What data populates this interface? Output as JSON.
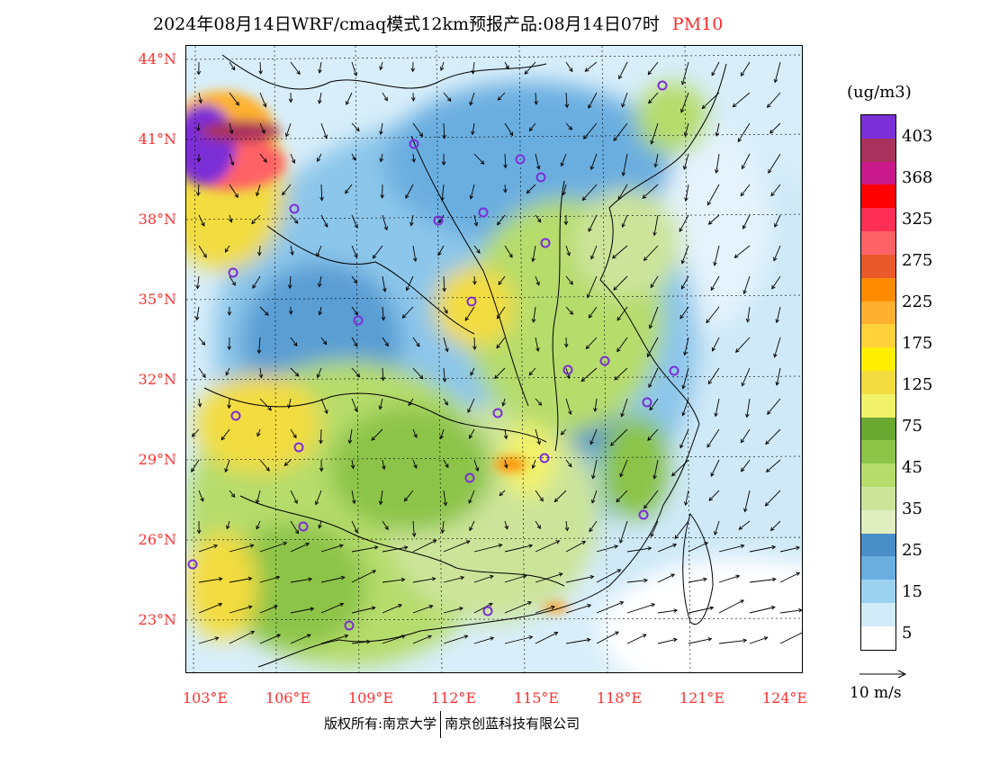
{
  "title": {
    "main": "2024年08月14日WRF/cmaq模式12km预报产品:08月14日07时",
    "pollutant": "PM10"
  },
  "lat_labels": [
    "44°N",
    "41°N",
    "38°N",
    "35°N",
    "32°N",
    "29°N",
    "26°N",
    "23°N"
  ],
  "lon_labels": [
    "103°E",
    "106°E",
    "109°E",
    "112°E",
    "115°E",
    "118°E",
    "121°E",
    "124°E"
  ],
  "colorbar": {
    "unit": "(ug/m3)",
    "labels": [
      "403",
      "368",
      "325",
      "275",
      "225",
      "175",
      "125",
      "75",
      "45",
      "35",
      "25",
      "15",
      "5"
    ],
    "colors": [
      "#7b2fd6",
      "#a8325c",
      "#c9198a",
      "#ff0000",
      "#ff2e55",
      "#ff6266",
      "#e85a2a",
      "#ff8c00",
      "#ffb02e",
      "#ffd23c",
      "#ffee00",
      "#f2dc40",
      "#f2f26a",
      "#6aa832",
      "#8cc448",
      "#b6dc6c",
      "#cce49a",
      "#e0eec0",
      "#4a8ec8",
      "#6aaee0",
      "#9cd2f0",
      "#d2ecfa",
      "#ffffff"
    ]
  },
  "wind_reference": "10 m/s",
  "copyright": {
    "left": "版权所有:南京大学",
    "right": "南京创蓝科技有限公司"
  }
}
